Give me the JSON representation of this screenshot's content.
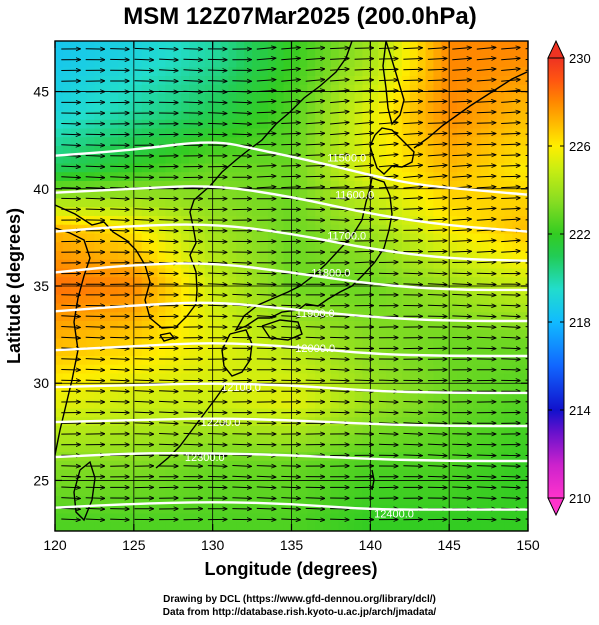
{
  "title": "MSM 12Z07Mar2025 (200.0hPa)",
  "credits": {
    "line1": "Drawing by DCL (https://www.gfd-dennou.org/library/dcl/)",
    "line2": "Data from http://database.rish.kyoto-u.ac.jp/arch/jmadata/"
  },
  "chart_data": {
    "type": "heatmap",
    "title": "MSM 12Z07Mar2025 (200.0hPa)",
    "xlabel": "Longitude (degrees)",
    "ylabel": "Latitude  (degrees)",
    "xlim": [
      120,
      150
    ],
    "ylim": [
      22.4,
      47.6
    ],
    "xticks": [
      "120",
      "125",
      "130",
      "135",
      "140",
      "145",
      "150"
    ],
    "yticks": [
      "25",
      "30",
      "35",
      "40",
      "45"
    ],
    "grid": true,
    "colorbar": {
      "range": [
        210,
        230
      ],
      "ticks": [
        "210",
        "214",
        "218",
        "222",
        "226",
        "230"
      ],
      "stops": [
        {
          "v": 210,
          "c": "#ff33cc"
        },
        {
          "v": 211.5,
          "c": "#cc22cc"
        },
        {
          "v": 213,
          "c": "#6611cc"
        },
        {
          "v": 214,
          "c": "#1111cc"
        },
        {
          "v": 216,
          "c": "#1166ff"
        },
        {
          "v": 218,
          "c": "#11bbff"
        },
        {
          "v": 219.5,
          "c": "#22ddcc"
        },
        {
          "v": 221,
          "c": "#22cc55"
        },
        {
          "v": 222,
          "c": "#33cc22"
        },
        {
          "v": 223.5,
          "c": "#88dd22"
        },
        {
          "v": 225,
          "c": "#ccee11"
        },
        {
          "v": 226,
          "c": "#ffee00"
        },
        {
          "v": 227,
          "c": "#ffbb00"
        },
        {
          "v": 228,
          "c": "#ff8800"
        },
        {
          "v": 229,
          "c": "#ff5511"
        },
        {
          "v": 230,
          "c": "#ee3322"
        }
      ]
    },
    "temperature_field": {
      "lon": [
        120,
        125,
        130,
        135,
        140,
        145,
        150
      ],
      "lat": [
        47,
        44,
        41,
        38,
        35,
        32,
        29,
        26,
        23
      ],
      "values": [
        [
          218.5,
          219,
          220,
          222,
          224,
          228,
          228
        ],
        [
          219,
          220,
          221,
          222.5,
          225.5,
          228,
          227
        ],
        [
          221,
          222,
          223,
          223,
          225.5,
          227,
          226
        ],
        [
          227,
          226,
          224,
          223,
          224,
          226,
          227
        ],
        [
          228.5,
          228,
          225,
          223,
          223,
          224,
          225
        ],
        [
          227,
          226.5,
          225.5,
          224.5,
          223.5,
          223,
          223
        ],
        [
          225.5,
          225,
          225,
          225.5,
          224,
          223,
          222.5
        ],
        [
          223.5,
          223.5,
          223,
          223,
          222.5,
          222.5,
          222
        ],
        [
          222.5,
          222.5,
          222.5,
          222.5,
          222,
          222,
          222
        ]
      ]
    },
    "geopotential_height_contours": [
      {
        "level": 11500,
        "label": "11500.0",
        "points": [
          [
            120,
            41.7
          ],
          [
            125,
            42.0
          ],
          [
            130,
            42.5
          ],
          [
            133,
            42.0
          ],
          [
            137,
            41.3
          ],
          [
            140,
            40.7
          ],
          [
            143,
            40.2
          ],
          [
            147,
            39.9
          ],
          [
            150,
            39.7
          ]
        ]
      },
      {
        "level": 11600,
        "label": "11600.0",
        "points": [
          [
            120,
            39.8
          ],
          [
            125,
            40.0
          ],
          [
            130,
            40.2
          ],
          [
            135,
            39.6
          ],
          [
            140,
            38.7
          ],
          [
            145,
            38.1
          ],
          [
            150,
            37.8
          ]
        ]
      },
      {
        "level": 11700,
        "label": "11700.0",
        "points": [
          [
            120,
            37.8
          ],
          [
            125,
            38.1
          ],
          [
            130,
            38.2
          ],
          [
            135,
            37.7
          ],
          [
            140,
            36.9
          ],
          [
            145,
            36.4
          ],
          [
            150,
            36.3
          ]
        ]
      },
      {
        "level": 11800,
        "label": "11800.0",
        "points": [
          [
            120,
            35.7
          ],
          [
            125,
            36.1
          ],
          [
            130,
            36.2
          ],
          [
            135,
            35.7
          ],
          [
            140,
            35.1
          ],
          [
            145,
            34.8
          ],
          [
            150,
            34.8
          ]
        ]
      },
      {
        "level": 11900,
        "label": "11900.0",
        "points": [
          [
            120,
            33.7
          ],
          [
            125,
            34.0
          ],
          [
            130,
            34.2
          ],
          [
            135,
            33.8
          ],
          [
            140,
            33.4
          ],
          [
            145,
            33.2
          ],
          [
            150,
            33.2
          ]
        ]
      },
      {
        "level": 12000,
        "label": "12000.0",
        "points": [
          [
            120,
            31.7
          ],
          [
            125,
            31.9
          ],
          [
            130,
            32.1
          ],
          [
            135,
            31.9
          ],
          [
            140,
            31.5
          ],
          [
            145,
            31.4
          ],
          [
            150,
            31.4
          ]
        ]
      },
      {
        "level": 12100,
        "label": "12100.0",
        "points": [
          [
            120,
            29.8
          ],
          [
            125,
            29.9
          ],
          [
            130,
            30.0
          ],
          [
            135,
            29.9
          ],
          [
            140,
            29.6
          ],
          [
            145,
            29.5
          ],
          [
            150,
            29.5
          ]
        ]
      },
      {
        "level": 12200,
        "label": "12200.0",
        "points": [
          [
            120,
            28.0
          ],
          [
            125,
            28.1
          ],
          [
            130,
            28.2
          ],
          [
            135,
            28.1
          ],
          [
            140,
            27.9
          ],
          [
            145,
            27.8
          ],
          [
            150,
            27.8
          ]
        ]
      },
      {
        "level": 12300,
        "label": "12300.0",
        "points": [
          [
            120,
            26.2
          ],
          [
            125,
            26.4
          ],
          [
            130,
            26.4
          ],
          [
            135,
            26.3
          ],
          [
            140,
            26.1
          ],
          [
            145,
            26.0
          ],
          [
            150,
            26.0
          ]
        ]
      },
      {
        "level": 12400,
        "label": "12400.0",
        "points": [
          [
            120,
            23.6
          ],
          [
            125,
            23.8
          ],
          [
            130,
            23.9
          ],
          [
            135,
            23.8
          ],
          [
            140,
            23.5
          ],
          [
            145,
            23.5
          ],
          [
            150,
            23.5
          ]
        ]
      }
    ],
    "contour_labels": [
      {
        "text": "11500.0",
        "lon": 138.5,
        "lat": 41.4
      },
      {
        "text": "11600.0",
        "lon": 139.0,
        "lat": 39.5
      },
      {
        "text": "11700.0",
        "lon": 138.5,
        "lat": 37.4
      },
      {
        "text": "11800.0",
        "lon": 137.5,
        "lat": 35.5
      },
      {
        "text": "11900.0",
        "lon": 136.5,
        "lat": 33.4
      },
      {
        "text": "12000.0",
        "lon": 136.5,
        "lat": 31.6
      },
      {
        "text": "12100.0",
        "lon": 131.8,
        "lat": 29.6
      },
      {
        "text": "12200.0",
        "lon": 130.5,
        "lat": 27.8
      },
      {
        "text": "12300.0",
        "lon": 129.5,
        "lat": 26.0
      },
      {
        "text": "12400.0",
        "lon": 141.5,
        "lat": 23.1
      }
    ]
  }
}
